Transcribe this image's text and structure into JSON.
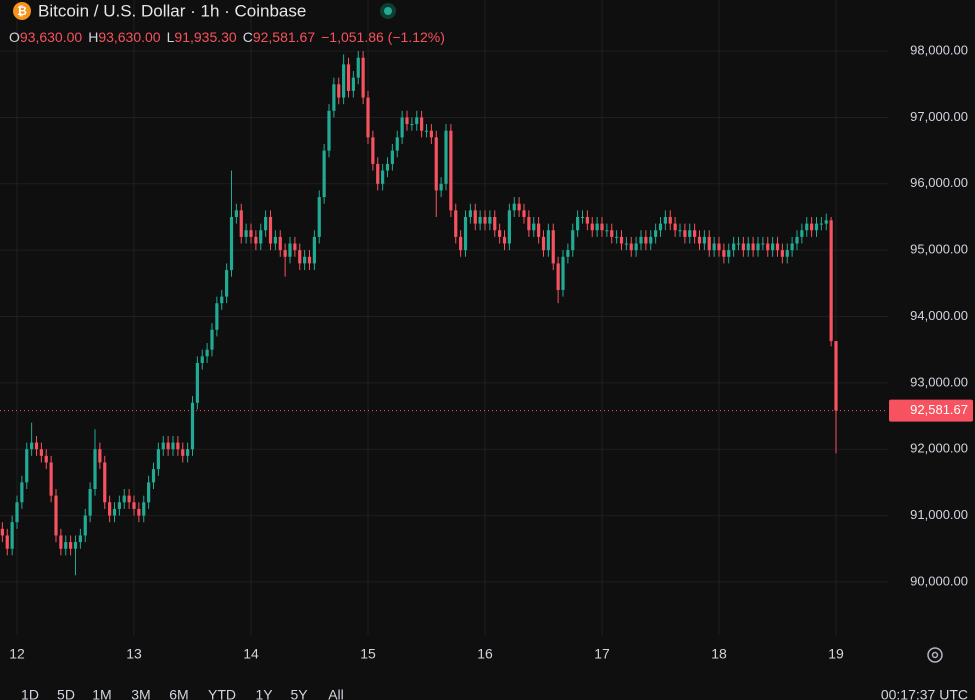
{
  "chart_data": {
    "type": "candlestick",
    "title": "Bitcoin / U.S. Dollar · 1h · Coinbase",
    "ohlc_legend": [
      {
        "key": "O",
        "value": "93,630.00"
      },
      {
        "key": "H",
        "value": "93,630.00"
      },
      {
        "key": "L",
        "value": "91,935.30"
      },
      {
        "key": "C",
        "value": "92,581.67"
      }
    ],
    "change": "−1,051.86 (−1.12%)",
    "last_price_label": "92,581.67",
    "time_label": "00:17:37 UTC",
    "timeframes": [
      "1D",
      "5D",
      "1M",
      "3M",
      "6M",
      "YTD",
      "1Y",
      "5Y",
      "All"
    ],
    "up_color": "#22ab94",
    "down_color": "#f7525f",
    "grid": true,
    "ylim": [
      89200,
      98770
    ],
    "yticks": [
      {
        "value": 90000,
        "label": "90,000.00"
      },
      {
        "value": 91000,
        "label": "91,000.00"
      },
      {
        "value": 92000,
        "label": "92,000.00"
      },
      {
        "value": 93000,
        "label": "93,000.00"
      },
      {
        "value": 94000,
        "label": "94,000.00"
      },
      {
        "value": 95000,
        "label": "95,000.00"
      },
      {
        "value": 96000,
        "label": "96,000.00"
      },
      {
        "value": 97000,
        "label": "97,000.00"
      },
      {
        "value": 98000,
        "label": "98,000.00"
      }
    ],
    "categories": [
      null,
      null,
      null,
      "12",
      null,
      null,
      null,
      null,
      null,
      null,
      null,
      null,
      null,
      null,
      null,
      null,
      null,
      null,
      null,
      null,
      null,
      null,
      null,
      null,
      null,
      null,
      null,
      "13",
      null,
      null,
      null,
      null,
      null,
      null,
      null,
      null,
      null,
      null,
      null,
      null,
      null,
      null,
      null,
      null,
      null,
      null,
      null,
      null,
      null,
      null,
      null,
      "14",
      null,
      null,
      null,
      null,
      null,
      null,
      null,
      null,
      null,
      null,
      null,
      null,
      null,
      null,
      null,
      null,
      null,
      null,
      null,
      null,
      null,
      null,
      null,
      "15",
      null,
      null,
      null,
      null,
      null,
      null,
      null,
      null,
      null,
      null,
      null,
      null,
      null,
      null,
      null,
      null,
      null,
      null,
      null,
      null,
      null,
      null,
      null,
      "16",
      null,
      null,
      null,
      null,
      null,
      null,
      null,
      null,
      null,
      null,
      null,
      null,
      null,
      null,
      null,
      null,
      null,
      null,
      null,
      null,
      null,
      null,
      null,
      "17",
      null,
      null,
      null,
      null,
      null,
      null,
      null,
      null,
      null,
      null,
      null,
      null,
      null,
      null,
      null,
      null,
      null,
      null,
      null,
      null,
      null,
      null,
      null,
      "18",
      null,
      null,
      null,
      null,
      null,
      null,
      null,
      null,
      null,
      null,
      null,
      null,
      null,
      null,
      null,
      null,
      null,
      null,
      null,
      null,
      null,
      null,
      null,
      "19"
    ],
    "open": [
      90800,
      90700,
      90500,
      90900,
      91200,
      91500,
      92000,
      92100,
      92000,
      91900,
      91800,
      91300,
      90700,
      90500,
      90600,
      90500,
      90600,
      90700,
      91000,
      91400,
      92000,
      91800,
      91200,
      91000,
      91100,
      91200,
      91300,
      91200,
      91100,
      91000,
      91200,
      91500,
      91700,
      92000,
      92100,
      92000,
      92100,
      92000,
      91900,
      92000,
      92700,
      93300,
      93400,
      93500,
      93800,
      94200,
      94300,
      94700,
      95500,
      95600,
      95200,
      95300,
      95200,
      95100,
      95300,
      95500,
      95100,
      95200,
      95000,
      94900,
      95100,
      95000,
      94800,
      94900,
      94800,
      95200,
      95800,
      96500,
      97100,
      97500,
      97300,
      97800,
      97400,
      97600,
      97900,
      97300,
      96700,
      96300,
      96000,
      96200,
      96300,
      96500,
      96700,
      97000,
      96900,
      96900,
      97000,
      96800,
      96800,
      96700,
      95900,
      96000,
      96800,
      95600,
      95200,
      95000,
      95500,
      95600,
      95400,
      95500,
      95400,
      95500,
      95300,
      95200,
      95100,
      95600,
      95700,
      95600,
      95500,
      95300,
      95400,
      95200,
      95000,
      95300,
      94800,
      94400,
      94900,
      95000,
      95300,
      95500,
      95500,
      95400,
      95300,
      95400,
      95300,
      95300,
      95200,
      95200,
      95100,
      95100,
      95000,
      95100,
      95200,
      95100,
      95200,
      95300,
      95400,
      95500,
      95400,
      95300,
      95300,
      95200,
      95300,
      95200,
      95100,
      95200,
      95000,
      95100,
      95000,
      94900,
      95000,
      95100,
      95100,
      95000,
      95100,
      95000,
      95100,
      95100,
      95000,
      95100,
      95000,
      94900,
      95000,
      95100,
      95200,
      95300,
      95400,
      95300,
      95400,
      95400,
      95450,
      93630
    ],
    "high": [
      90900,
      90800,
      91000,
      91300,
      91600,
      92100,
      92400,
      92200,
      92100,
      92000,
      91900,
      91400,
      90800,
      90700,
      90700,
      90700,
      90800,
      91100,
      91500,
      92300,
      92100,
      91900,
      91300,
      91200,
      91300,
      91400,
      91400,
      91300,
      91200,
      91300,
      91600,
      91800,
      92100,
      92200,
      92200,
      92200,
      92200,
      92100,
      92100,
      92800,
      93400,
      93500,
      93600,
      93900,
      94300,
      94400,
      94800,
      96200,
      95700,
      95700,
      95400,
      95400,
      95300,
      95400,
      95600,
      95600,
      95300,
      95300,
      95100,
      95200,
      95200,
      95100,
      95000,
      95000,
      95300,
      95900,
      96600,
      97200,
      97600,
      97600,
      97950,
      97900,
      97700,
      98000,
      98000,
      97400,
      96800,
      96400,
      96300,
      96400,
      96600,
      96800,
      97100,
      97100,
      97000,
      97100,
      97100,
      96900,
      96900,
      96800,
      96100,
      96900,
      96900,
      95700,
      95300,
      95600,
      95700,
      95700,
      95600,
      95600,
      95600,
      95600,
      95400,
      95300,
      95700,
      95800,
      95800,
      95700,
      95600,
      95500,
      95500,
      95300,
      95400,
      95400,
      94900,
      95000,
      95100,
      95400,
      95600,
      95600,
      95600,
      95500,
      95500,
      95500,
      95400,
      95400,
      95300,
      95300,
      95200,
      95200,
      95200,
      95300,
      95300,
      95300,
      95400,
      95500,
      95600,
      95600,
      95500,
      95400,
      95400,
      95400,
      95400,
      95300,
      95300,
      95300,
      95200,
      95200,
      95100,
      95100,
      95200,
      95200,
      95200,
      95200,
      95200,
      95200,
      95200,
      95200,
      95200,
      95200,
      95100,
      95100,
      95200,
      95300,
      95400,
      95500,
      95500,
      95500,
      95500,
      95550,
      95500,
      93630
    ],
    "low": [
      90600,
      90400,
      90400,
      90800,
      91100,
      91400,
      91900,
      91900,
      91800,
      91700,
      91200,
      90600,
      90400,
      90400,
      90400,
      90100,
      90500,
      90600,
      90900,
      91300,
      91700,
      91100,
      90900,
      90900,
      91000,
      91100,
      91100,
      91000,
      90900,
      90900,
      91100,
      91400,
      91600,
      91900,
      91900,
      91900,
      91900,
      91800,
      91800,
      91900,
      92600,
      93200,
      93300,
      93400,
      93700,
      94100,
      94200,
      94600,
      95400,
      95100,
      95100,
      95100,
      95000,
      95000,
      95200,
      95000,
      95000,
      94900,
      94600,
      94800,
      94900,
      94700,
      94700,
      94700,
      94700,
      95100,
      95700,
      96400,
      97000,
      97200,
      97200,
      97300,
      97300,
      97500,
      97200,
      96600,
      96200,
      95900,
      95900,
      96100,
      96200,
      96400,
      96600,
      96800,
      96800,
      96800,
      96700,
      96700,
      96600,
      95500,
      95800,
      95900,
      95500,
      95100,
      94900,
      94900,
      95400,
      95300,
      95300,
      95300,
      95300,
      95200,
      95100,
      95000,
      95000,
      95500,
      95500,
      95400,
      95200,
      95200,
      95100,
      94900,
      94900,
      94700,
      94200,
      94300,
      94800,
      94900,
      95200,
      95400,
      95300,
      95200,
      95200,
      95200,
      95200,
      95100,
      95100,
      95000,
      95000,
      94900,
      94900,
      95000,
      95000,
      95000,
      95100,
      95200,
      95300,
      95300,
      95200,
      95200,
      95100,
      95100,
      95100,
      95000,
      95000,
      94900,
      94900,
      94900,
      94800,
      94800,
      94900,
      95000,
      94900,
      94900,
      94900,
      94900,
      95000,
      94900,
      94900,
      94900,
      94800,
      94800,
      94900,
      95000,
      95100,
      95200,
      95200,
      95200,
      95300,
      95300,
      93550,
      91935.3
    ],
    "close": [
      90700,
      90500,
      90900,
      91200,
      91500,
      92000,
      92100,
      92000,
      91900,
      91800,
      91300,
      90700,
      90500,
      90600,
      90500,
      90600,
      90700,
      91000,
      91400,
      92000,
      91800,
      91200,
      91000,
      91100,
      91200,
      91300,
      91200,
      91100,
      91000,
      91200,
      91500,
      91700,
      92000,
      92100,
      92000,
      92100,
      92000,
      91900,
      92000,
      92700,
      93300,
      93400,
      93500,
      93800,
      94200,
      94300,
      94700,
      95500,
      95600,
      95200,
      95300,
      95200,
      95100,
      95300,
      95500,
      95100,
      95200,
      95000,
      94900,
      95100,
      95000,
      94800,
      94900,
      94800,
      95200,
      95800,
      96500,
      97100,
      97500,
      97300,
      97800,
      97400,
      97600,
      97900,
      97300,
      96700,
      96300,
      96000,
      96200,
      96300,
      96500,
      96700,
      97000,
      96900,
      96900,
      97000,
      96800,
      96800,
      96700,
      95900,
      96000,
      96800,
      95600,
      95200,
      95000,
      95500,
      95600,
      95400,
      95500,
      95400,
      95500,
      95300,
      95200,
      95100,
      95600,
      95700,
      95600,
      95500,
      95300,
      95400,
      95200,
      95000,
      95300,
      94800,
      94400,
      94900,
      95000,
      95300,
      95500,
      95500,
      95400,
      95300,
      95400,
      95300,
      95300,
      95200,
      95200,
      95100,
      95100,
      95000,
      95100,
      95200,
      95100,
      95200,
      95300,
      95400,
      95500,
      95400,
      95300,
      95300,
      95200,
      95300,
      95200,
      95100,
      95200,
      95000,
      95100,
      95000,
      94900,
      95000,
      95100,
      95100,
      95000,
      95100,
      95000,
      95100,
      95100,
      95000,
      95100,
      95000,
      94900,
      95000,
      95100,
      95200,
      95300,
      95400,
      95300,
      95400,
      95400,
      95450,
      93630,
      92581.67
    ]
  }
}
